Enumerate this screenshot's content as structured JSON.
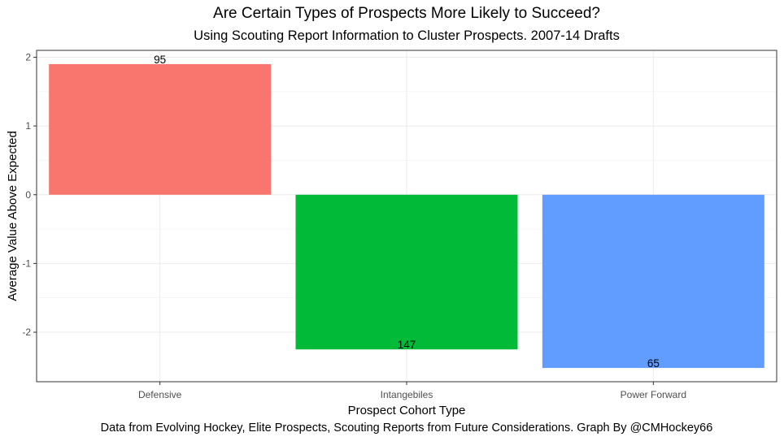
{
  "chart_data": {
    "type": "bar",
    "title": "Are Certain Types of Prospects More Likely to Succeed?",
    "subtitle": "Using Scouting Report Information to Cluster Prospects. 2007-14 Drafts",
    "caption": "Data from Evolving Hockey, Elite Prospects, Scouting Reports from Future Considerations. Graph By @CMHockey66",
    "xlabel": "Prospect Cohort Type",
    "ylabel": "Average Value Above Expected",
    "categories": [
      "Defensive",
      "Intangebiles",
      "Power Forward"
    ],
    "values": [
      1.9,
      -2.25,
      -2.52
    ],
    "labels": [
      "95",
      "147",
      "65"
    ],
    "colors": [
      "#F8766D",
      "#00BA38",
      "#619CFF"
    ],
    "ylim": [
      -2.72,
      2.1
    ],
    "yticks": [
      2,
      1,
      0,
      -1,
      -2
    ],
    "ytick_labels": [
      "2",
      "1",
      "0",
      "-1",
      "-2"
    ],
    "grid": true,
    "legend": "none"
  }
}
